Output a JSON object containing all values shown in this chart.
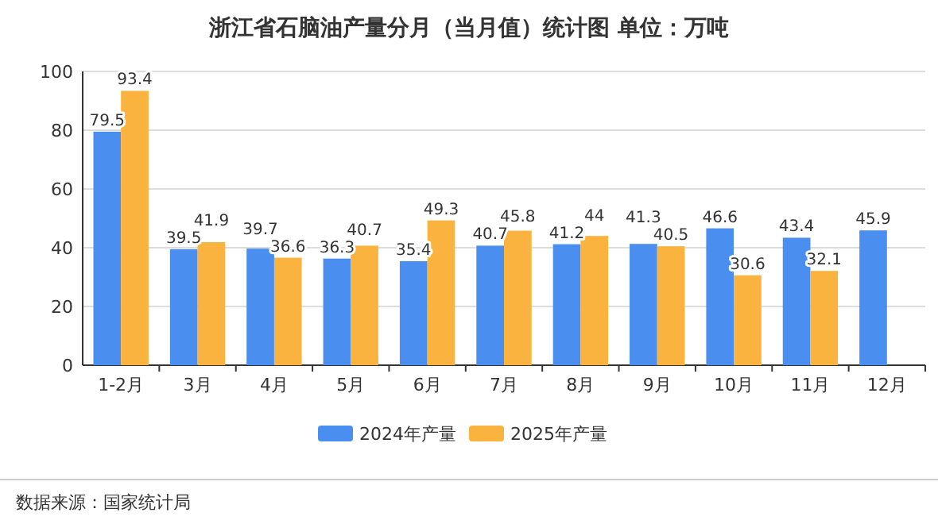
{
  "chart_data": {
    "type": "bar",
    "title": "浙江省石脑油产量分月（当月值）统计图 单位：万吨",
    "categories": [
      "1-2月",
      "3月",
      "4月",
      "5月",
      "6月",
      "7月",
      "8月",
      "9月",
      "10月",
      "11月",
      "12月"
    ],
    "series": [
      {
        "name": "2024年产量",
        "color": "#4a8ef0",
        "values": [
          79.5,
          39.5,
          39.7,
          36.3,
          35.4,
          40.7,
          41.2,
          41.3,
          46.6,
          43.4,
          45.9
        ]
      },
      {
        "name": "2025年产量",
        "color": "#fab33e",
        "values": [
          93.4,
          41.9,
          36.6,
          40.7,
          49.3,
          45.8,
          44,
          40.5,
          30.6,
          32.1,
          null
        ]
      }
    ],
    "ylim": [
      0,
      100
    ],
    "yticks": [
      0,
      20,
      40,
      60,
      80,
      100
    ],
    "grid": "y",
    "legend": "bottom",
    "data_labels": true,
    "annotations": [
      "数据来源：国家统计局"
    ]
  }
}
